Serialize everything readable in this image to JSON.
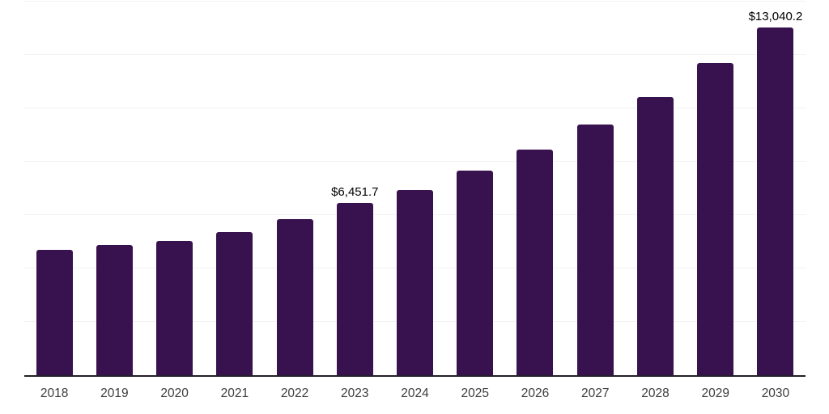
{
  "chart_data": {
    "type": "bar",
    "title": "",
    "xlabel": "",
    "ylabel": "",
    "categories": [
      "2018",
      "2019",
      "2020",
      "2021",
      "2022",
      "2023",
      "2024",
      "2025",
      "2026",
      "2027",
      "2028",
      "2029",
      "2030"
    ],
    "values": [
      4700,
      4870,
      5020,
      5370,
      5840,
      6451.7,
      6950,
      7680,
      8470,
      9380,
      10430,
      11690,
      13040.2
    ],
    "data_labels": {
      "2023": "$6,451.7",
      "2030": "$13,040.2"
    },
    "ylim": [
      0,
      14000
    ],
    "gridline_step": 2000,
    "grid": "horizontal-only, no y-axis tick labels",
    "legend_position": "none",
    "colors": {
      "bar": "#38124e",
      "axis_line": "#24202a",
      "gridline": "#f2f2f2",
      "value_label": "#000000",
      "tick_label": "#3d3d3d",
      "background": "#ffffff"
    }
  }
}
